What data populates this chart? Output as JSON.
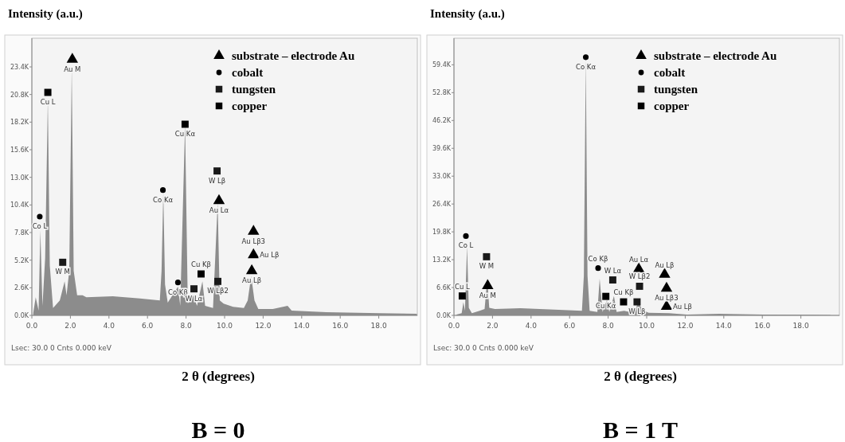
{
  "chart_data": [
    {
      "type": "area",
      "title": "B = 0",
      "xlabel": "2 θ (degrees)",
      "ylabel": "Intensity (a.u.)",
      "legend": "top right",
      "xlim": [
        0,
        20
      ],
      "ylim": [
        0,
        26.1
      ],
      "xticks": [
        {
          "value": 0,
          "label": "0.0"
        },
        {
          "value": 2,
          "label": "2.0"
        },
        {
          "value": 4,
          "label": "4.0"
        },
        {
          "value": 6,
          "label": "6.0"
        },
        {
          "value": 8,
          "label": "8.0"
        },
        {
          "value": 10,
          "label": "10.0"
        },
        {
          "value": 12,
          "label": "12.0"
        },
        {
          "value": 14,
          "label": "14.0"
        },
        {
          "value": 16,
          "label": "16.0"
        },
        {
          "value": 18,
          "label": "18.0"
        }
      ],
      "yticks": [
        {
          "value": 0,
          "label": "0.0K"
        },
        {
          "value": 2.6,
          "label": "2.6K"
        },
        {
          "value": 5.2,
          "label": "5.2K"
        },
        {
          "value": 7.8,
          "label": "7.8K"
        },
        {
          "value": 10.4,
          "label": "10.4K"
        },
        {
          "value": 13,
          "label": "13.0K"
        },
        {
          "value": 15.6,
          "label": "15.6K"
        },
        {
          "value": 18.2,
          "label": "18.2K"
        },
        {
          "value": 20.8,
          "label": "20.8K"
        },
        {
          "value": 23.4,
          "label": "23.4K"
        }
      ],
      "series": [
        {
          "color": "#8c8c8c",
          "x": [
            0.07,
            0.2,
            0.35,
            0.44,
            0.55,
            0.69,
            0.83,
            0.93,
            1.1,
            1.45,
            1.7,
            1.8,
            1.94,
            2.07,
            2.17,
            2.35,
            2.63,
            2.83,
            4.2,
            5.6,
            6.64,
            6.73,
            6.82,
            6.91,
            7.05,
            7.58,
            7.7,
            7.95,
            8.09,
            8.36,
            8.57,
            8.85,
            8.99,
            9.4,
            9.64,
            9.75,
            9.95,
            10.44,
            11.0,
            11.2,
            11.38,
            11.55,
            11.75,
            12.5,
            13.27,
            13.48,
            15.28,
            18.04,
            19.98
          ],
          "values": [
            0.2,
            1.7,
            0.45,
            8.0,
            0.9,
            5.4,
            20.3,
            4.7,
            0.7,
            1.4,
            3.2,
            1.9,
            4.2,
            23.3,
            4.2,
            1.9,
            1.9,
            1.7,
            1.8,
            1.6,
            1.4,
            4.2,
            11.6,
            2.9,
            1.2,
            2.7,
            0.9,
            18.0,
            1.1,
            1.9,
            0.9,
            3.2,
            0.9,
            0.7,
            10.6,
            1.4,
            1.1,
            0.8,
            0.7,
            1.4,
            3.7,
            1.4,
            0.6,
            0.6,
            0.9,
            0.45,
            0.3,
            0.2,
            0.15
          ]
        },
        {
          "type": "scatter",
          "name": "substrate – electrode Au",
          "marker": "triangle",
          "color": "#000000",
          "x": [
            2.1,
            9.71,
            11.5,
            11.5,
            11.41
          ],
          "values": [
            24.1,
            10.8,
            7.9,
            5.7,
            4.2
          ]
        },
        {
          "type": "scatter",
          "name": "cobalt",
          "marker": "circle",
          "color": "#000000",
          "x": [
            0.41,
            6.8,
            7.58
          ],
          "values": [
            9.3,
            11.8,
            3.1
          ]
        },
        {
          "type": "scatter",
          "name": "tungsten",
          "marker": "square",
          "color": "#1a1a1a",
          "x": [
            1.6,
            9.61,
            8.41,
            9.65
          ],
          "values": [
            5.0,
            13.6,
            2.5,
            3.2
          ]
        },
        {
          "type": "scatter",
          "name": "copper",
          "marker": "square",
          "color": "#000000",
          "x": [
            0.83,
            7.95,
            8.78
          ],
          "values": [
            21.0,
            18.0,
            3.9
          ]
        }
      ],
      "annotations": [
        {
          "text": "Au M",
          "x": 2.1,
          "y": 24.1
        },
        {
          "text": "Cu L",
          "x": 0.83,
          "y": 21.0
        },
        {
          "text": "Co L",
          "x": 0.41,
          "y": 9.3
        },
        {
          "text": "W  M",
          "x": 1.6,
          "y": 5.0
        },
        {
          "text": "Co Kα",
          "x": 6.8,
          "y": 11.8
        },
        {
          "text": "Cu Kα",
          "x": 7.95,
          "y": 18.0
        },
        {
          "text": "W Lβ",
          "x": 9.61,
          "y": 13.6
        },
        {
          "text": "Au Lα",
          "x": 9.71,
          "y": 10.8
        },
        {
          "text": "Au Lβ3",
          "x": 11.5,
          "y": 7.9
        },
        {
          "text": "Au Lβ",
          "x": 11.5,
          "y": 5.7
        },
        {
          "text": "Co Kβ",
          "x": 7.58,
          "y": 3.1
        },
        {
          "text": "Cu Kβ",
          "x": 8.78,
          "y": 3.9
        },
        {
          "text": "W Lα",
          "x": 8.41,
          "y": 2.5
        },
        {
          "text": "W Lβ2",
          "x": 9.65,
          "y": 3.2
        },
        {
          "text": "Au Lβ",
          "x": 11.41,
          "y": 4.2
        },
        "Lsec: 30.0 0 Cnts  0.000 keV"
      ]
    },
    {
      "type": "area",
      "title": "B = 1 T",
      "xlabel": "2 θ (degrees)",
      "ylabel": "Intensity (a.u.)",
      "legend": "top right",
      "xlim": [
        0,
        20
      ],
      "ylim": [
        0,
        65.7
      ],
      "xticks": [
        {
          "value": 0,
          "label": "0.0"
        },
        {
          "value": 2,
          "label": "2.0"
        },
        {
          "value": 4,
          "label": "4.0"
        },
        {
          "value": 6,
          "label": "6.0"
        },
        {
          "value": 8,
          "label": "8.0"
        },
        {
          "value": 10,
          "label": "10.0"
        },
        {
          "value": 12,
          "label": "12.0"
        },
        {
          "value": 14,
          "label": "14.0"
        },
        {
          "value": 16,
          "label": "16.0"
        },
        {
          "value": 18,
          "label": "18.0"
        }
      ],
      "yticks": [
        {
          "value": 0,
          "label": "0.0K"
        },
        {
          "value": 6.6,
          "label": "6.6K"
        },
        {
          "value": 13.2,
          "label": "13.2K"
        },
        {
          "value": 19.8,
          "label": "19.8K"
        },
        {
          "value": 26.4,
          "label": "26.4K"
        },
        {
          "value": 33,
          "label": "33.0K"
        },
        {
          "value": 39.6,
          "label": "39.6K"
        },
        {
          "value": 46.2,
          "label": "46.2K"
        },
        {
          "value": 52.8,
          "label": "52.8K"
        },
        {
          "value": 59.4,
          "label": "59.4K"
        }
      ],
      "series": [
        {
          "color": "#8c8c8c",
          "x": [
            0.13,
            0.4,
            0.49,
            0.57,
            0.68,
            0.77,
            0.93,
            1.33,
            1.59,
            1.73,
            1.83,
            2.13,
            3.45,
            5.45,
            6.64,
            6.74,
            6.84,
            6.93,
            7.04,
            7.44,
            7.56,
            7.71,
            7.94,
            8.06,
            8.3,
            8.44,
            8.83,
            9.3,
            9.59,
            9.76,
            10.1,
            11.16,
            12.1,
            13.75,
            16.08,
            19.53
          ],
          "values": [
            0.2,
            0.5,
            3.1,
            1.1,
            16.4,
            1.8,
            0.5,
            1.1,
            1.5,
            8.8,
            1.8,
            1.5,
            1.7,
            1.3,
            1.1,
            9.4,
            60.7,
            9.4,
            1.1,
            0.8,
            8.7,
            0.8,
            3.7,
            0.8,
            4.6,
            0.8,
            1.1,
            0.6,
            3.1,
            1.3,
            0.6,
            0.5,
            0.2,
            0.4,
            0.2,
            0.1
          ]
        },
        {
          "type": "scatter",
          "name": "substrate – electrode Au",
          "marker": "triangle",
          "color": "#000000",
          "x": [
            1.75,
            9.59,
            10.93,
            11.03,
            11.03
          ],
          "values": [
            7.0,
            11.0,
            9.7,
            6.4,
            2.1
          ]
        },
        {
          "type": "scatter",
          "name": "cobalt",
          "marker": "circle",
          "color": "#000000",
          "x": [
            0.62,
            6.84,
            7.48
          ],
          "values": [
            18.8,
            61.2,
            11.2
          ]
        },
        {
          "type": "scatter",
          "name": "tungsten",
          "marker": "square",
          "color": "#1a1a1a",
          "x": [
            1.69,
            8.24,
            9.63,
            9.5
          ],
          "values": [
            13.9,
            8.4,
            6.9,
            3.2
          ]
        },
        {
          "type": "scatter",
          "name": "copper",
          "marker": "square",
          "color": "#000000",
          "x": [
            0.43,
            7.88,
            8.8
          ],
          "values": [
            4.6,
            4.5,
            3.2
          ]
        }
      ],
      "annotations": [
        {
          "text": "Co Kα",
          "x": 6.84,
          "y": 61.2
        },
        {
          "text": "Co L",
          "x": 0.62,
          "y": 18.8
        },
        {
          "text": "W  M",
          "x": 1.69,
          "y": 13.9
        },
        {
          "text": "Cu L",
          "x": 0.43,
          "y": 4.6
        },
        {
          "text": "Au M",
          "x": 1.75,
          "y": 7.0
        },
        {
          "text": "Co Kβ",
          "x": 7.48,
          "y": 11.2
        },
        {
          "text": "Cu Kβ",
          "x": 8.8,
          "y": 3.2
        },
        {
          "text": "W Lα",
          "x": 8.24,
          "y": 8.4
        },
        {
          "text": "Cu Kα",
          "x": 7.88,
          "y": 4.5
        },
        {
          "text": "Au Lα",
          "x": 9.59,
          "y": 11.0
        },
        {
          "text": "W Lβ2",
          "x": 9.63,
          "y": 6.9
        },
        {
          "text": "W Lβ",
          "x": 9.5,
          "y": 3.2
        },
        {
          "text": "Au Lβ",
          "x": 10.93,
          "y": 9.7
        },
        {
          "text": "Au Lβ3",
          "x": 11.03,
          "y": 6.4
        },
        {
          "text": "Au Lβ",
          "x": 11.03,
          "y": 2.1
        },
        "Lsec: 30.0 0 Cnts  0.000 keV"
      ]
    }
  ]
}
